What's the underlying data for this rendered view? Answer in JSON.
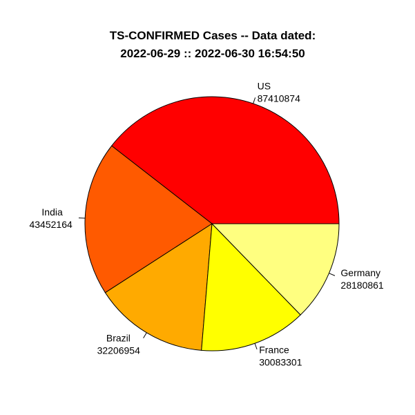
{
  "chart_data": {
    "type": "pie",
    "title_line1": "TS-CONFIRMED Cases  -- Data dated:",
    "title_line2": "2022-06-29  ::  2022-06-30 16:54:50",
    "direction": "counterclockwise",
    "start_angle_deg": 0,
    "slices": [
      {
        "name": "US",
        "value": 87410874,
        "color": "#FF0000",
        "label_side": "right"
      },
      {
        "name": "India",
        "value": 43452164,
        "color": "#FF5A00",
        "label_side": "left"
      },
      {
        "name": "Brazil",
        "value": 32206954,
        "color": "#FFAA00",
        "label_side": "left"
      },
      {
        "name": "France",
        "value": 30083301,
        "color": "#FFFF00",
        "label_side": "right"
      },
      {
        "name": "Germany",
        "value": 28180861,
        "color": "#FFFF80",
        "label_side": "right"
      }
    ]
  }
}
